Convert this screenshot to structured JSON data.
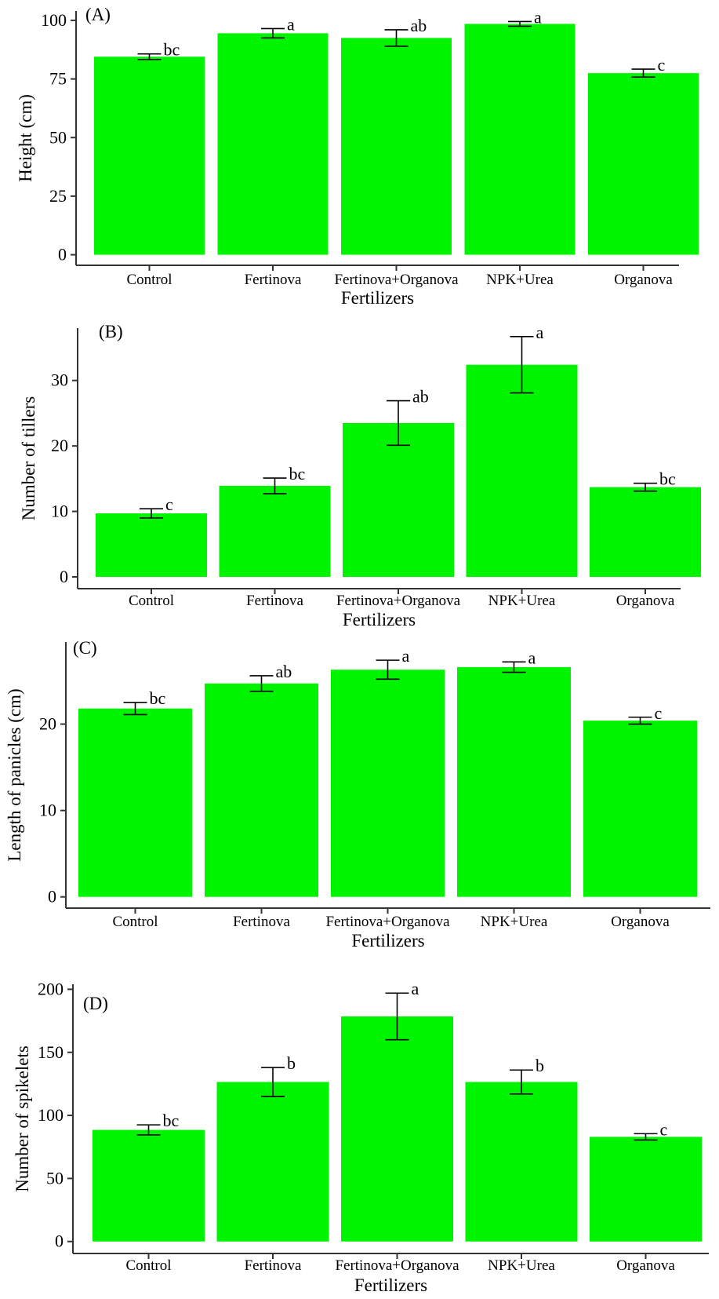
{
  "figure": {
    "bar_color": "#00f400",
    "axis_color": "#333333"
  },
  "chart_data": [
    {
      "panel": "(A)",
      "type": "bar",
      "categories": [
        "Control",
        "Fertinova",
        "Fertinova+Organova",
        "NPK+Urea",
        "Organova"
      ],
      "values": [
        84.5,
        94.5,
        92.5,
        98.5,
        77.5
      ],
      "errors": [
        1.2,
        2.0,
        3.5,
        1.0,
        1.7
      ],
      "significance": [
        "bc",
        "a",
        "ab",
        "a",
        "c"
      ],
      "xlabel": "Fertilizers",
      "ylabel": "Height (cm)",
      "yticks": [
        0,
        25,
        50,
        75,
        100
      ],
      "ylim": [
        -4.5,
        104
      ]
    },
    {
      "panel": "(B)",
      "type": "bar",
      "categories": [
        "Control",
        "Fertinova",
        "Fertinova+Organova",
        "NPK+Urea",
        "Organova"
      ],
      "values": [
        9.7,
        13.9,
        23.5,
        32.4,
        13.7
      ],
      "errors": [
        0.7,
        1.2,
        3.4,
        4.3,
        0.6
      ],
      "significance": [
        "c",
        "bc",
        "ab",
        "a",
        "bc"
      ],
      "xlabel": "Fertilizers",
      "ylabel": "Number of tillers",
      "yticks": [
        0,
        10,
        20,
        30
      ],
      "ylim": [
        -1.8,
        38
      ]
    },
    {
      "panel": "(C)",
      "type": "bar",
      "categories": [
        "Control",
        "Fertinova",
        "Fertinova+Organova",
        "NPK+Urea",
        "Organova"
      ],
      "values": [
        21.8,
        24.7,
        26.3,
        26.6,
        20.4
      ],
      "errors": [
        0.7,
        0.9,
        1.1,
        0.6,
        0.4
      ],
      "significance": [
        "bc",
        "ab",
        "a",
        "a",
        "c"
      ],
      "xlabel": "Fertilizers",
      "ylabel": "Length of panicles (cm)",
      "yticks": [
        0,
        10,
        20
      ],
      "ylim": [
        -1.3,
        29.5
      ]
    },
    {
      "panel": "(D)",
      "type": "bar",
      "categories": [
        "Control",
        "Fertinova",
        "Fertinova+Organova",
        "NPK+Urea",
        "Organova"
      ],
      "values": [
        88.5,
        126.5,
        178.5,
        126.5,
        83
      ],
      "errors": [
        4,
        11.5,
        18.5,
        9.5,
        2.5
      ],
      "significance": [
        "bc",
        "b",
        "a",
        "b",
        "c"
      ],
      "xlabel": "Fertilizers",
      "ylabel": "Number of spikelets",
      "yticks": [
        0,
        50,
        100,
        150,
        200
      ],
      "ylim": [
        -9.5,
        204
      ]
    }
  ]
}
